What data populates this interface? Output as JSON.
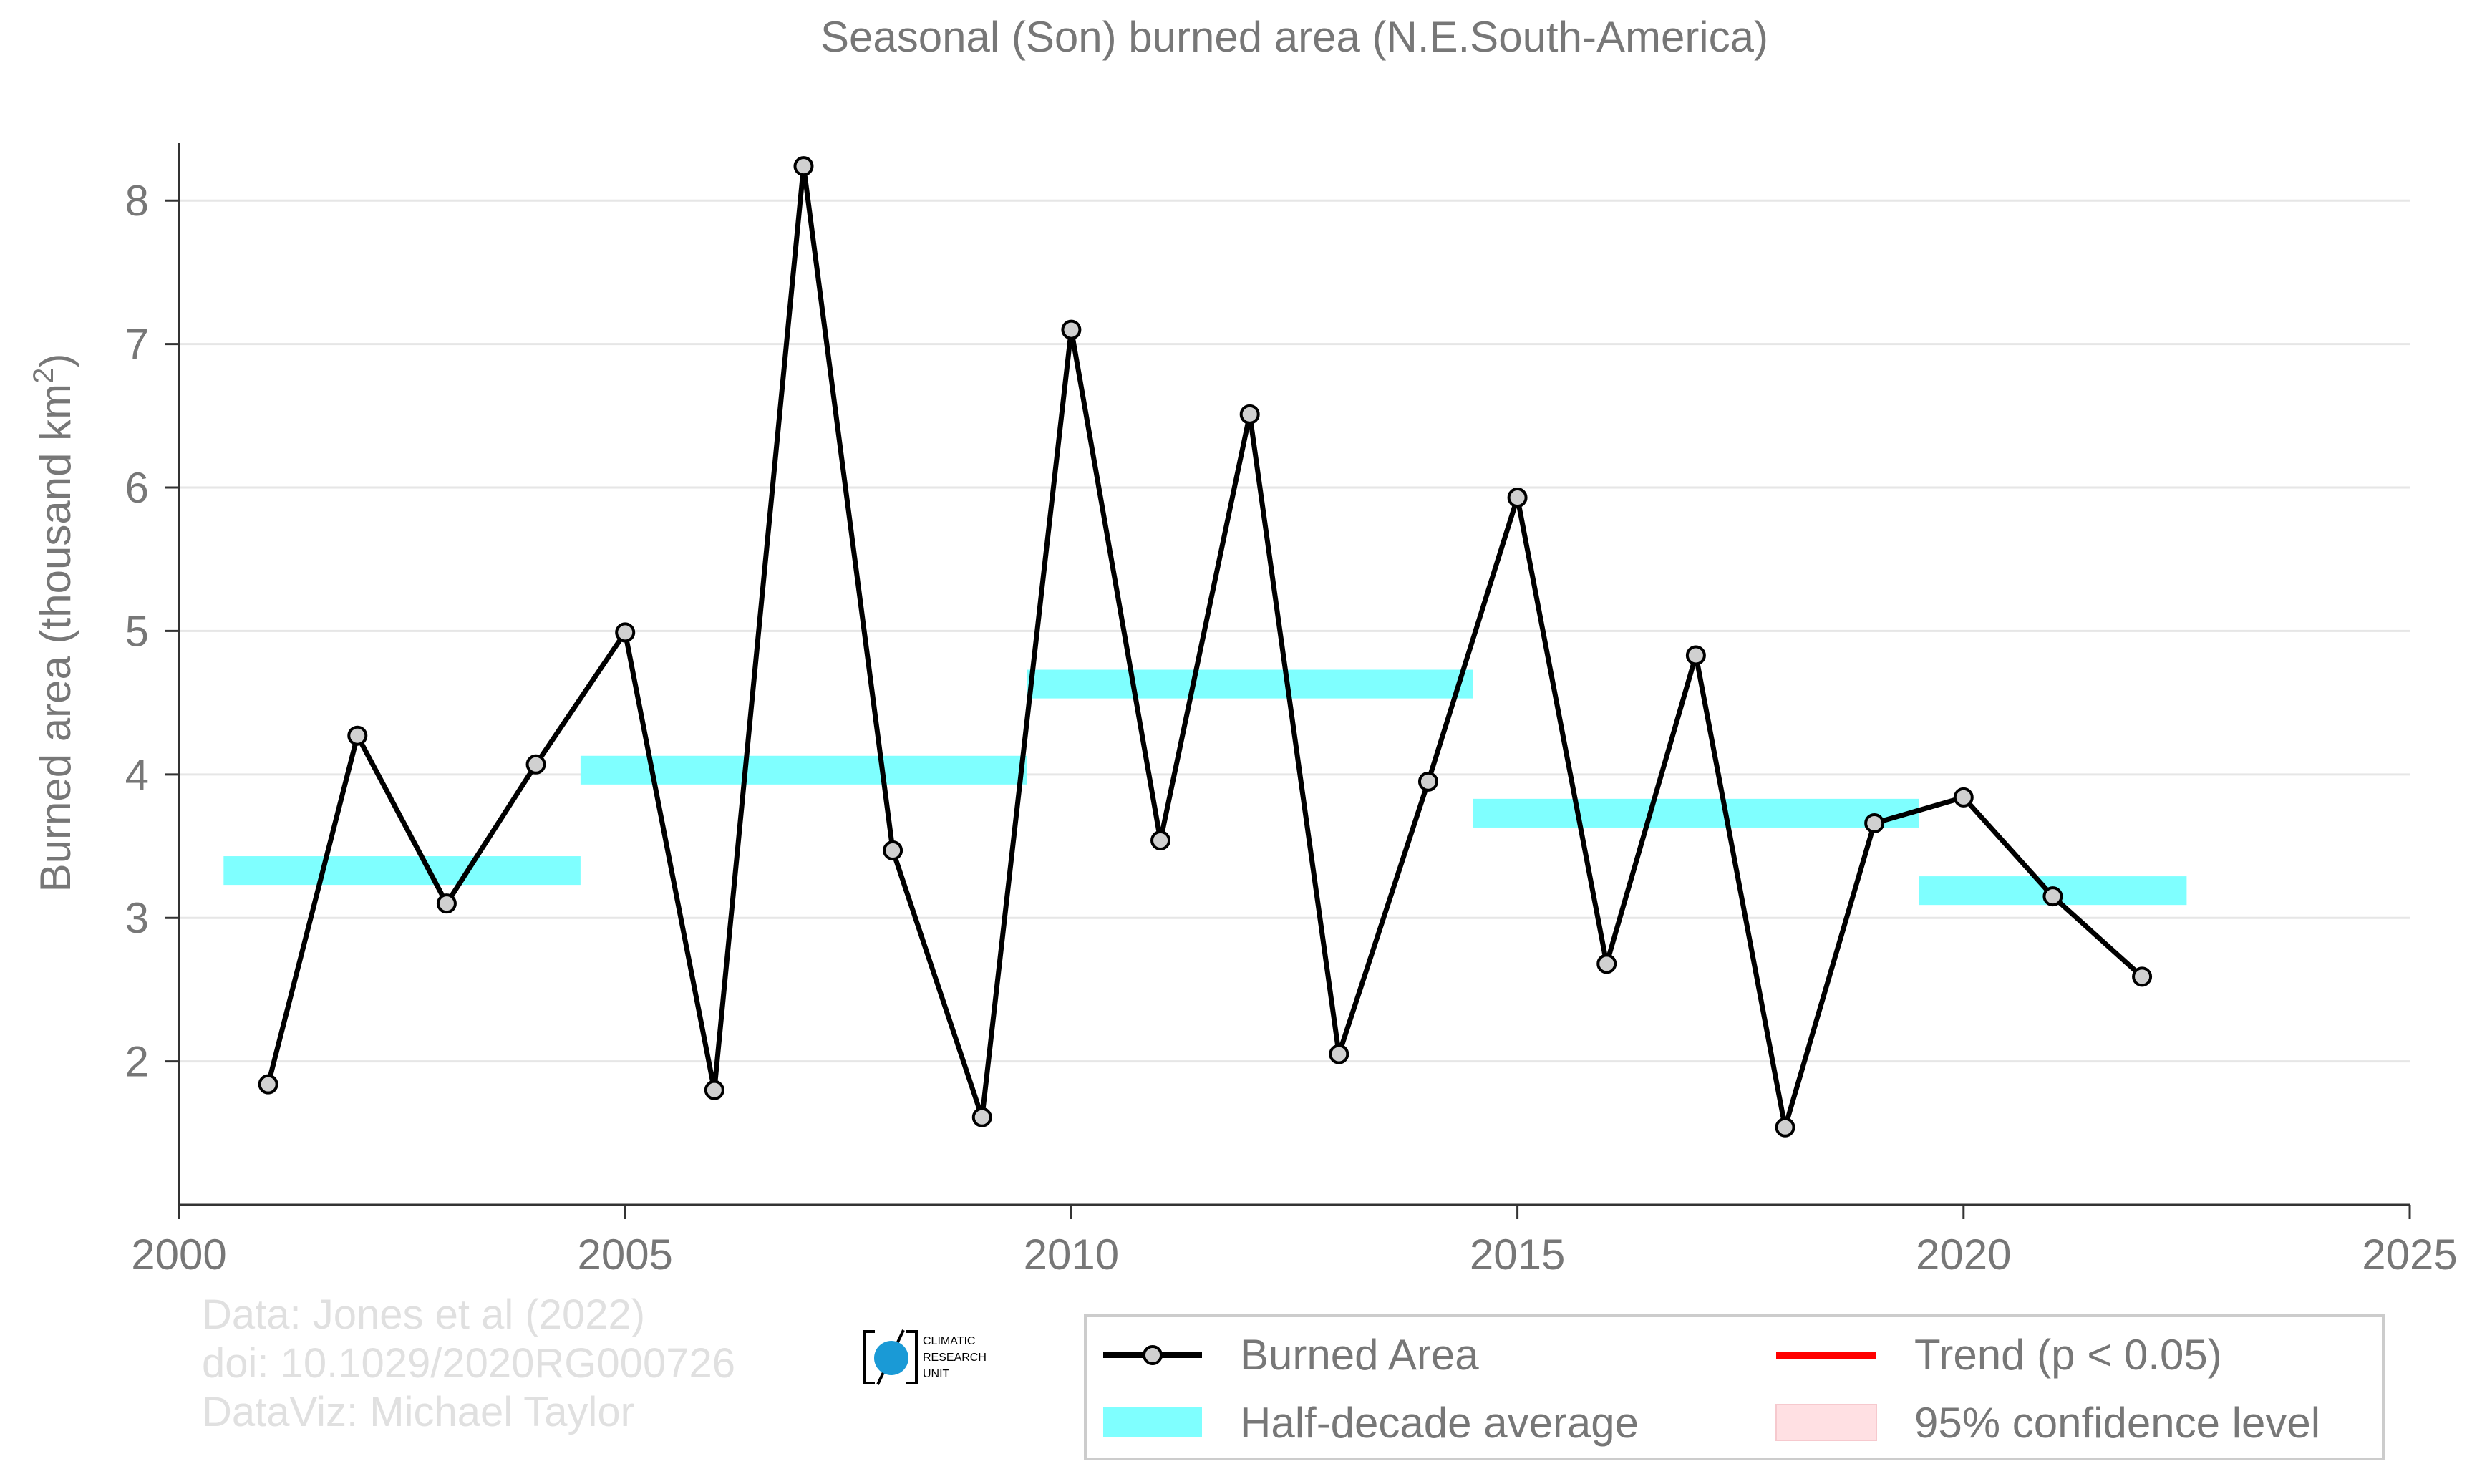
{
  "chart_data": {
    "type": "line",
    "title": "Seasonal (Son) burned area (N.E.South-America)",
    "ylabel_main": "Burned area (thousand km",
    "ylabel_sup": "2",
    "ylabel_close": ")",
    "xlim": [
      2000,
      2025
    ],
    "ylim": [
      1.0,
      8.6
    ],
    "x_ticks": [
      2000,
      2005,
      2010,
      2015,
      2020,
      2025
    ],
    "y_ticks": [
      2,
      3,
      4,
      5,
      6,
      7,
      8
    ],
    "grid": "horizontal",
    "series": [
      {
        "name": "Burned Area",
        "color": "#000000",
        "marker_fill": "#d0d0d0",
        "x": [
          2001,
          2002,
          2003,
          2004,
          2005,
          2006,
          2007,
          2008,
          2009,
          2010,
          2011,
          2012,
          2013,
          2014,
          2015,
          2016,
          2017,
          2018,
          2019,
          2020,
          2021,
          2022
        ],
        "y": [
          1.84,
          4.27,
          3.1,
          4.07,
          4.99,
          1.8,
          8.24,
          3.47,
          1.61,
          7.1,
          3.54,
          6.51,
          2.05,
          3.95,
          5.93,
          2.68,
          4.83,
          1.54,
          3.66,
          3.84,
          3.15,
          2.59
        ]
      }
    ],
    "half_decade_average": {
      "name": "Half-decade average",
      "color": "#7fffff",
      "segments": [
        {
          "x0": 2000.5,
          "x1": 2004.5,
          "y": 3.33
        },
        {
          "x0": 2004.5,
          "x1": 2009.5,
          "y": 4.03
        },
        {
          "x0": 2009.5,
          "x1": 2014.5,
          "y": 4.63
        },
        {
          "x0": 2014.5,
          "x1": 2019.5,
          "y": 3.73
        },
        {
          "x0": 2019.5,
          "x1": 2022.5,
          "y": 3.19
        }
      ]
    },
    "legend": {
      "position": "bottom-right",
      "entries": [
        {
          "label": "Burned Area",
          "kind": "line-marker",
          "color": "#000000"
        },
        {
          "label": "Trend (p < 0.05)",
          "kind": "line",
          "color": "#ff0000"
        },
        {
          "label": "Half-decade average",
          "kind": "band",
          "color": "#7fffff"
        },
        {
          "label": "95% confidence level",
          "kind": "box",
          "color": "#ffe0e3"
        }
      ]
    },
    "credits": [
      "Data: Jones et al (2022)",
      "doi: 10.1029/2020RG000726",
      "DataViz: Michael Taylor"
    ],
    "logo_text": [
      "CLIMATIC",
      "RESEARCH",
      "UNIT"
    ],
    "colors": {
      "axis_text": "#777777",
      "grid": "#e6e6e6",
      "credits": "#e0e0e0",
      "logo_blue": "#1a9ad6"
    }
  }
}
